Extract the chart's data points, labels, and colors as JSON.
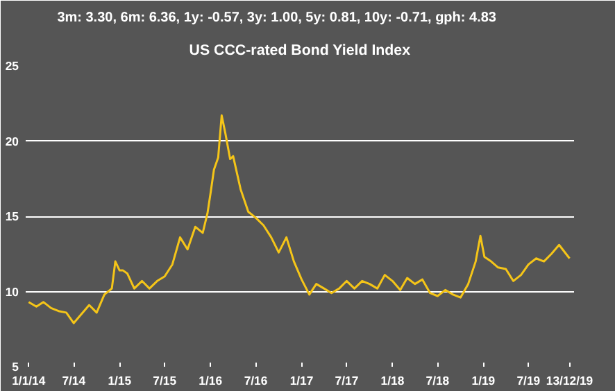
{
  "chart_data": {
    "type": "line",
    "title": "US CCC-rated Bond Yield Index",
    "subtitle": "3m: 3.30,   6m: 6.36,   1y: -0.57,   3y: 1.00,   5y: 0.81,   10y: -0.71,   gph: 4.83",
    "x": [
      "2014-01-01",
      "2014-02-01",
      "2014-03-01",
      "2014-04-01",
      "2014-05-01",
      "2014-06-01",
      "2014-07-01",
      "2014-08-01",
      "2014-09-01",
      "2014-10-01",
      "2014-11-01",
      "2014-12-01",
      "2014-12-15",
      "2015-01-01",
      "2015-01-15",
      "2015-02-01",
      "2015-03-01",
      "2015-04-01",
      "2015-05-01",
      "2015-06-01",
      "2015-07-01",
      "2015-08-01",
      "2015-09-01",
      "2015-10-01",
      "2015-11-01",
      "2015-12-01",
      "2015-12-20",
      "2016-01-01",
      "2016-01-15",
      "2016-02-01",
      "2016-02-15",
      "2016-03-01",
      "2016-03-20",
      "2016-04-01",
      "2016-05-01",
      "2016-06-01",
      "2016-07-01",
      "2016-08-01",
      "2016-09-01",
      "2016-10-01",
      "2016-11-01",
      "2016-12-01",
      "2017-01-01",
      "2017-02-01",
      "2017-03-01",
      "2017-04-01",
      "2017-05-01",
      "2017-06-01",
      "2017-07-01",
      "2017-08-01",
      "2017-09-01",
      "2017-10-01",
      "2017-11-01",
      "2017-12-01",
      "2018-01-01",
      "2018-02-01",
      "2018-03-01",
      "2018-04-01",
      "2018-05-01",
      "2018-06-01",
      "2018-07-01",
      "2018-08-01",
      "2018-09-01",
      "2018-10-01",
      "2018-11-01",
      "2018-12-01",
      "2018-12-20",
      "2019-01-05",
      "2019-02-01",
      "2019-03-01",
      "2019-04-01",
      "2019-05-01",
      "2019-06-01",
      "2019-07-01",
      "2019-08-01",
      "2019-09-01",
      "2019-10-01",
      "2019-11-01",
      "2019-12-13"
    ],
    "series": [
      {
        "color": "#f5c518",
        "values": [
          9.3,
          9.0,
          9.3,
          8.9,
          8.7,
          8.6,
          7.9,
          8.5,
          9.1,
          8.6,
          9.8,
          10.2,
          12.0,
          11.4,
          11.4,
          11.2,
          10.2,
          10.7,
          10.2,
          10.7,
          11.0,
          11.8,
          13.6,
          12.8,
          14.3,
          13.9,
          15.2,
          16.5,
          18.1,
          18.9,
          21.7,
          20.5,
          18.8,
          19.0,
          16.8,
          15.3,
          14.9,
          14.4,
          13.6,
          12.6,
          13.6,
          12.0,
          10.8,
          9.8,
          10.5,
          10.2,
          9.9,
          10.2,
          10.7,
          10.2,
          10.7,
          10.5,
          10.2,
          11.1,
          10.7,
          10.1,
          10.9,
          10.5,
          10.8,
          9.9,
          9.7,
          10.1,
          9.8,
          9.6,
          10.5,
          12.0,
          13.7,
          12.3,
          12.0,
          11.6,
          11.5,
          10.7,
          11.1,
          11.8,
          12.2,
          12.0,
          12.5,
          13.1,
          12.2
        ]
      }
    ],
    "xlim": [
      "2013-12-20",
      "2019-12-31"
    ],
    "xticks": [
      {
        "value": "2014-01-01",
        "label": "1/1/14"
      },
      {
        "value": "2014-07-01",
        "label": "7/14"
      },
      {
        "value": "2015-01-01",
        "label": "1/15"
      },
      {
        "value": "2015-07-01",
        "label": "7/15"
      },
      {
        "value": "2016-01-01",
        "label": "1/16"
      },
      {
        "value": "2016-07-01",
        "label": "7/16"
      },
      {
        "value": "2017-01-01",
        "label": "1/17"
      },
      {
        "value": "2017-07-01",
        "label": "7/17"
      },
      {
        "value": "2018-01-01",
        "label": "1/18"
      },
      {
        "value": "2018-07-01",
        "label": "7/18"
      },
      {
        "value": "2019-01-01",
        "label": "1/19"
      },
      {
        "value": "2019-07-01",
        "label": "7/19"
      },
      {
        "value": "2019-12-13",
        "label": "13/12/19"
      }
    ],
    "ylim": [
      5,
      25
    ],
    "yticks": [
      5,
      10,
      15,
      20,
      25
    ],
    "grid": "y",
    "marker": "none",
    "line_style": "solid"
  }
}
